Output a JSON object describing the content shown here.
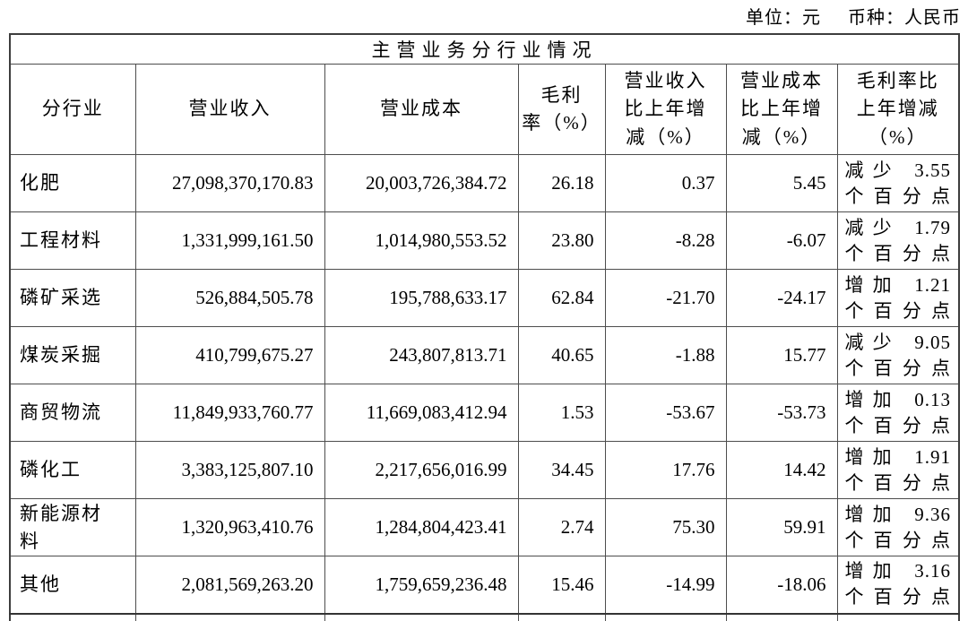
{
  "meta": {
    "unit_label": "单位：元",
    "currency_label": "币种：人民币"
  },
  "table": {
    "title": "主营业务分行业情况",
    "columns": [
      "分行业",
      "营业收入",
      "营业成本",
      "毛利\n率（%）",
      "营业收入\n比上年增\n减（%）",
      "营业成本\n比上年增\n减（%）",
      "毛利率比\n上年增减\n（%）"
    ],
    "rows": [
      {
        "industry": "化肥",
        "revenue": "27,098,370,170.83",
        "cost": "20,003,726,384.72",
        "margin": "26.18",
        "revenue_change": "0.37",
        "cost_change": "5.45",
        "margin_change_l1": "减少 3.55",
        "margin_change_l2": "个百分点"
      },
      {
        "industry": "工程材料",
        "revenue": "1,331,999,161.50",
        "cost": "1,014,980,553.52",
        "margin": "23.80",
        "revenue_change": "-8.28",
        "cost_change": "-6.07",
        "margin_change_l1": "减少 1.79",
        "margin_change_l2": "个百分点"
      },
      {
        "industry": "磷矿采选",
        "revenue": "526,884,505.78",
        "cost": "195,788,633.17",
        "margin": "62.84",
        "revenue_change": "-21.70",
        "cost_change": "-24.17",
        "margin_change_l1": "增加 1.21",
        "margin_change_l2": "个百分点"
      },
      {
        "industry": "煤炭采掘",
        "revenue": "410,799,675.27",
        "cost": "243,807,813.71",
        "margin": "40.65",
        "revenue_change": "-1.88",
        "cost_change": "15.77",
        "margin_change_l1": "减少 9.05",
        "margin_change_l2": "个百分点"
      },
      {
        "industry": "商贸物流",
        "revenue": "11,849,933,760.77",
        "cost": "11,669,083,412.94",
        "margin": "1.53",
        "revenue_change": "-53.67",
        "cost_change": "-53.73",
        "margin_change_l1": "增加 0.13",
        "margin_change_l2": "个百分点"
      },
      {
        "industry": "磷化工",
        "revenue": "3,383,125,807.10",
        "cost": "2,217,656,016.99",
        "margin": "34.45",
        "revenue_change": "17.76",
        "cost_change": "14.42",
        "margin_change_l1": "增加 1.91",
        "margin_change_l2": "个百分点"
      },
      {
        "industry": "新能源材\n料",
        "revenue": "1,320,963,410.76",
        "cost": "1,284,804,423.41",
        "margin": "2.74",
        "revenue_change": "75.30",
        "cost_change": "59.91",
        "margin_change_l1": "增加 9.36",
        "margin_change_l2": "个百分点"
      },
      {
        "industry": "其他",
        "revenue": "2,081,569,263.20",
        "cost": "1,759,659,236.48",
        "margin": "15.46",
        "revenue_change": "-14.99",
        "cost_change": "-18.06",
        "margin_change_l1": "增加 3.16",
        "margin_change_l2": "个百分点"
      }
    ]
  }
}
